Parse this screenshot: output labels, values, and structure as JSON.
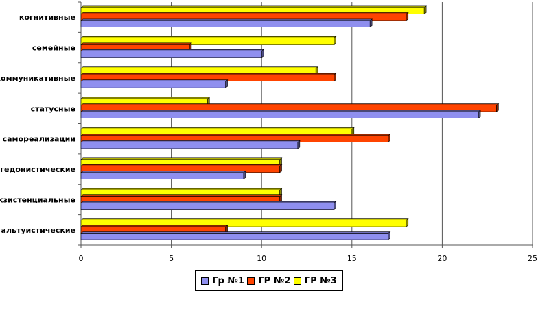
{
  "chart_data": {
    "type": "bar",
    "orientation": "horizontal",
    "categories": [
      "когнитивные",
      "семейные",
      "коммуникативные",
      "статусные",
      "самореализации",
      "гедонистические",
      "экзистенциальные",
      "альтуистические"
    ],
    "series": [
      {
        "name": "Гр №1",
        "color": "#8f8fef",
        "values": [
          16,
          10,
          8,
          22,
          12,
          9,
          14,
          17
        ]
      },
      {
        "name": "ГР №2",
        "color": "#ff4400",
        "values": [
          18,
          6,
          14,
          23,
          17,
          11,
          11,
          8
        ]
      },
      {
        "name": "ГР №3",
        "color": "#ffff00",
        "values": [
          19,
          14,
          13,
          7,
          15,
          11,
          11,
          18
        ]
      }
    ],
    "xlim": [
      0,
      25
    ],
    "x_ticks": [
      "0",
      "5",
      "10",
      "15",
      "20",
      "25"
    ],
    "grid": "vertical",
    "legend_position": "bottom"
  }
}
